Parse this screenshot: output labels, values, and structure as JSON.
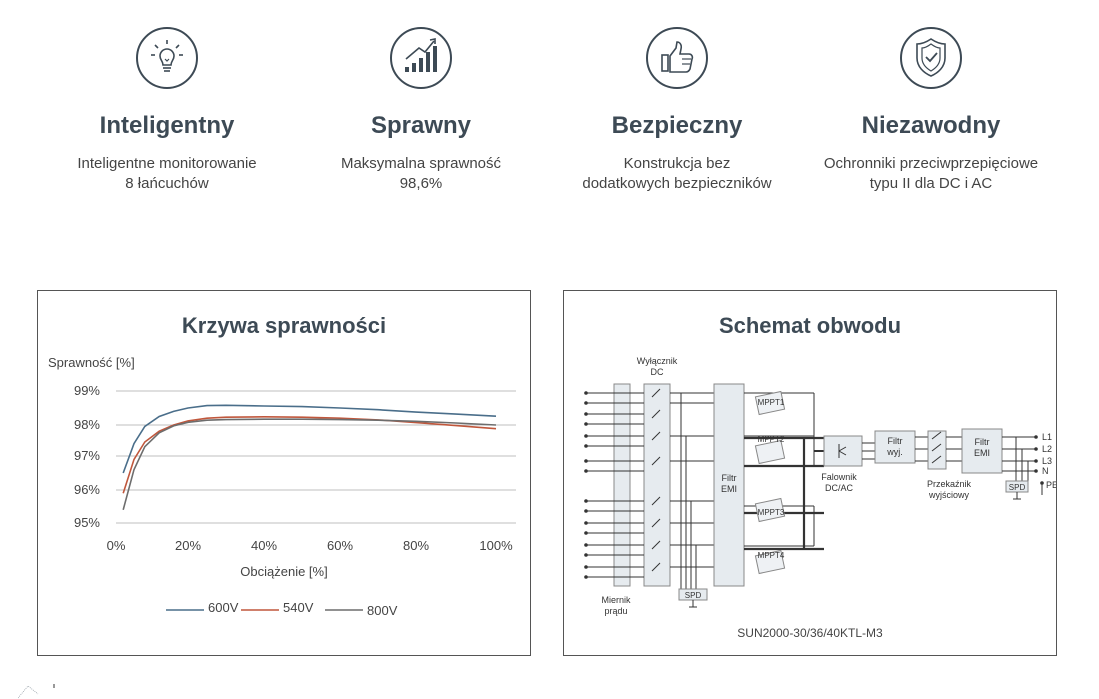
{
  "features": [
    {
      "icon": "lightbulb-icon",
      "title": "Inteligentny",
      "desc_line1": "Inteligentne monitorowanie",
      "desc_line2": "8 łańcuchów"
    },
    {
      "icon": "growth-chart-icon",
      "title": "Sprawny",
      "desc_line1": "Maksymalna sprawność",
      "desc_line2": "98,6%"
    },
    {
      "icon": "thumbs-up-icon",
      "title": "Bezpieczny",
      "desc_line1": "Konstrukcja bez",
      "desc_line2": "dodatkowych bezpieczników"
    },
    {
      "icon": "shield-check-icon",
      "title": "Niezawodny",
      "desc_line1": "Ochronniki przeciwprzepięciowe",
      "desc_line2": "typu II dla DC i AC"
    }
  ],
  "efficiency_panel": {
    "title": "Krzywa sprawności"
  },
  "chart_data": {
    "type": "line",
    "title": "Krzywa sprawności",
    "ylabel": "Sprawność [%]",
    "xlabel": "Obciążenie [%]",
    "x_ticks": [
      "0%",
      "20%",
      "40%",
      "60%",
      "80%",
      "100%"
    ],
    "y_ticks": [
      "99%",
      "98%",
      "97%",
      "96%",
      "95%"
    ],
    "xlim": [
      0,
      100
    ],
    "ylim": [
      94.7,
      99.2
    ],
    "grid": true,
    "legend_position": "bottom",
    "series": [
      {
        "name": "600V",
        "color": "#4a6e8a",
        "x": [
          2,
          5,
          8,
          12,
          16,
          20,
          25,
          30,
          40,
          50,
          60,
          70,
          80,
          90,
          100
        ],
        "y": [
          96.5,
          97.4,
          97.95,
          98.25,
          98.4,
          98.5,
          98.57,
          98.58,
          98.56,
          98.54,
          98.5,
          98.45,
          98.38,
          98.32,
          98.26
        ]
      },
      {
        "name": "540V",
        "color": "#c0573c",
        "x": [
          2,
          5,
          8,
          12,
          16,
          20,
          25,
          30,
          40,
          50,
          60,
          70,
          80,
          90,
          100
        ],
        "y": [
          95.9,
          96.9,
          97.45,
          97.8,
          98.0,
          98.12,
          98.2,
          98.23,
          98.24,
          98.23,
          98.2,
          98.15,
          98.07,
          97.98,
          97.88
        ]
      },
      {
        "name": "800V",
        "color": "#6d6d6d",
        "x": [
          2,
          5,
          8,
          12,
          16,
          20,
          25,
          30,
          40,
          50,
          60,
          70,
          80,
          90,
          100
        ],
        "y": [
          95.4,
          96.6,
          97.3,
          97.75,
          97.97,
          98.08,
          98.14,
          98.16,
          98.17,
          98.17,
          98.16,
          98.14,
          98.11,
          98.06,
          98.0
        ]
      }
    ]
  },
  "circuit_panel": {
    "title": "Schemat obwodu",
    "labels": {
      "dc_switch_l1": "Wyłącznik",
      "dc_switch_l2": "DC",
      "mppt1": "MPPT1",
      "mppt2": "MPPT2",
      "mppt3": "MPPT3",
      "mppt4": "MPPT4",
      "emi_in_l1": "Filtr",
      "emi_in_l2": "EMI",
      "inverter_l1": "Falownik",
      "inverter_l2": "DC/AC",
      "out_filter_l1": "Filtr",
      "out_filter_l2": "wyj.",
      "relay_l1": "Przekaźnik",
      "relay_l2": "wyjściowy",
      "emi_out_l1": "Filtr",
      "emi_out_l2": "EMI",
      "l1": "L1",
      "l2": "L2",
      "l3": "L3",
      "n": "N",
      "pe": "PE",
      "spd_dc": "SPD",
      "spd_ac": "SPD",
      "meter_l1": "Miernik",
      "meter_l2": "prądu",
      "model": "SUN2000-30/36/40KTL-M3"
    }
  }
}
